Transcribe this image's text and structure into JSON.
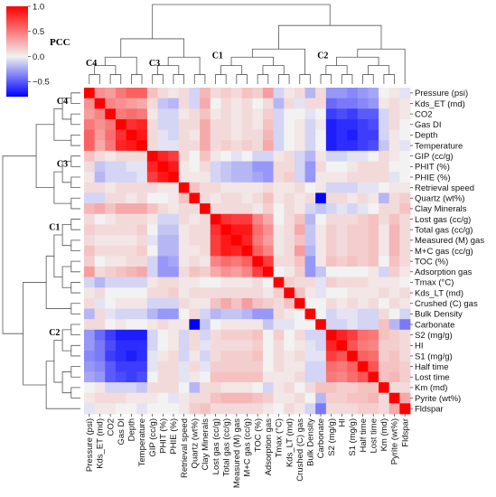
{
  "chart_data": {
    "type": "heatmap",
    "title": "",
    "colorbar": {
      "label": "PCC",
      "range": [
        -0.8,
        1.0
      ],
      "ticks": [
        1.0,
        0.5,
        0.0,
        -0.5
      ],
      "tick_labels": [
        "1.0",
        "0.5",
        "0.0",
        "−0.5"
      ],
      "colors": {
        "low": "#0000ff",
        "mid": "#f2f2f2",
        "high": "#ff0000"
      }
    },
    "variables": [
      "Pressure (psi)",
      "Kds_ET (md)",
      "CO2",
      "Gas DI",
      "Depth",
      "Temperature",
      "GIP (cc/g)",
      "PHIT (%)",
      "PHIE (%)",
      "Retrieval speed",
      "Quartz (wt%)",
      "Clay Minerals",
      "Lost gas (cc/g)",
      "Total gas (cc/g)",
      "Measured (M) gas",
      "M+C gas (cc/g)",
      "TOC (%)",
      "Adsorption gas",
      "Tmax (°C)",
      "Kds_LT (md)",
      "Crushed (C) gas",
      "Bulk Density",
      "Carbonate",
      "S2 (mg/g)",
      "HI",
      "S1 (mg/g)",
      "Half time",
      "Lost time",
      "Km (md)",
      "Pyrite (wt%)",
      "Fldspar"
    ],
    "x_tick_labels": [
      "Pressure (psi)",
      "Kds_ET (md)",
      "CO2",
      "Gas DI",
      "Depth",
      "Temperature",
      "GIP (cc/g)",
      "PHIT (%)",
      "PHIE (%)",
      "Retrieval speed",
      "Quartz (wt%)",
      "Clay Minerals",
      "Lost gas (cc/g)",
      "Total gas (cc/g)",
      "Measured (M) gas",
      "M+C gas (cc/g)",
      "TOC (%)",
      "Adsorption gas",
      "Tmax (°C)",
      "Kds_LT (md)",
      "Crushed (C) gas",
      "Bulk Density",
      "Carbonate",
      "S2 (mg/g)",
      "HI",
      "S1 (mg/g)",
      "Half time",
      "Lost time",
      "Km (md)",
      "Pyrite (wt%)",
      "Fldspar"
    ],
    "clusters": [
      {
        "name": "C4",
        "start": 0,
        "end": 5
      },
      {
        "name": "C3",
        "start": 6,
        "end": 11
      },
      {
        "name": "C1",
        "start": 12,
        "end": 21
      },
      {
        "name": "C2",
        "start": 22,
        "end": 30
      }
    ],
    "values": [
      [
        1.0,
        0.4,
        0.35,
        0.5,
        0.6,
        0.6,
        0.2,
        0.1,
        0.05,
        0.1,
        -0.1,
        0.25,
        0.1,
        0.15,
        0.1,
        0.2,
        0.15,
        0.35,
        -0.1,
        0.05,
        0.1,
        -0.2,
        0.1,
        -0.3,
        -0.3,
        -0.35,
        -0.3,
        -0.25,
        0.0,
        0.05,
        -0.05
      ],
      [
        0.4,
        1.0,
        0.45,
        0.4,
        0.35,
        0.3,
        0.1,
        -0.15,
        -0.2,
        0.1,
        -0.1,
        0.3,
        0.0,
        0.1,
        0.05,
        0.1,
        0.0,
        0.1,
        -0.2,
        0.1,
        -0.05,
        0.1,
        0.1,
        -0.45,
        -0.4,
        -0.4,
        -0.35,
        -0.3,
        0.05,
        0.1,
        0.05
      ],
      [
        0.35,
        0.45,
        1.0,
        0.5,
        0.55,
        0.5,
        0.05,
        -0.1,
        -0.1,
        0.05,
        0.1,
        0.2,
        0.05,
        0.1,
        0.05,
        0.1,
        0.05,
        0.15,
        -0.1,
        0.0,
        0.0,
        -0.05,
        0.0,
        -0.6,
        -0.55,
        -0.6,
        -0.5,
        -0.5,
        -0.1,
        0.1,
        0.05
      ],
      [
        0.5,
        0.4,
        0.5,
        1.0,
        0.8,
        0.85,
        0.1,
        -0.1,
        -0.1,
        0.1,
        0.1,
        0.3,
        0.1,
        0.1,
        0.05,
        0.1,
        0.05,
        0.2,
        -0.1,
        0.0,
        0.05,
        -0.1,
        0.05,
        -0.7,
        -0.65,
        -0.65,
        -0.6,
        -0.55,
        -0.1,
        0.1,
        0.0
      ],
      [
        0.6,
        0.35,
        0.55,
        0.8,
        1.0,
        0.9,
        0.1,
        -0.05,
        -0.1,
        0.1,
        0.05,
        0.3,
        0.1,
        0.1,
        0.05,
        0.1,
        0.1,
        0.25,
        -0.1,
        0.0,
        0.05,
        -0.1,
        0.0,
        -0.7,
        -0.65,
        -0.7,
        -0.6,
        -0.6,
        -0.1,
        0.05,
        0.0
      ],
      [
        0.6,
        0.3,
        0.5,
        0.85,
        0.9,
        1.0,
        0.1,
        -0.05,
        -0.05,
        0.1,
        0.1,
        0.3,
        0.1,
        0.15,
        0.1,
        0.15,
        0.1,
        0.3,
        -0.1,
        0.0,
        0.05,
        -0.1,
        0.0,
        -0.7,
        -0.65,
        -0.65,
        -0.6,
        -0.55,
        -0.15,
        0.05,
        -0.05
      ],
      [
        0.2,
        0.1,
        0.05,
        0.1,
        0.1,
        0.1,
        1.0,
        0.85,
        0.75,
        0.1,
        0.0,
        0.2,
        0.05,
        0.0,
        -0.05,
        0.0,
        -0.1,
        -0.1,
        0.05,
        0.1,
        -0.1,
        -0.2,
        0.05,
        -0.1,
        -0.1,
        -0.05,
        -0.05,
        0.0,
        0.1,
        0.05,
        0.0
      ],
      [
        0.1,
        -0.15,
        -0.1,
        -0.1,
        -0.05,
        -0.05,
        0.85,
        1.0,
        0.9,
        0.05,
        0.0,
        0.1,
        -0.1,
        -0.15,
        -0.2,
        -0.2,
        -0.3,
        -0.3,
        0.1,
        0.1,
        -0.1,
        -0.3,
        0.1,
        0.0,
        0.0,
        0.05,
        0.1,
        0.1,
        0.1,
        0.0,
        0.0
      ],
      [
        0.05,
        -0.2,
        -0.1,
        -0.1,
        -0.1,
        -0.05,
        0.75,
        0.9,
        1.0,
        0.05,
        0.05,
        0.05,
        -0.1,
        -0.15,
        -0.2,
        -0.2,
        -0.25,
        -0.3,
        0.1,
        0.15,
        -0.1,
        -0.3,
        0.05,
        0.05,
        0.05,
        0.1,
        0.1,
        0.1,
        0.1,
        -0.05,
        0.0
      ],
      [
        0.1,
        0.1,
        0.05,
        0.1,
        0.1,
        0.1,
        0.1,
        0.05,
        0.05,
        1.0,
        0.2,
        0.1,
        0.1,
        0.05,
        0.05,
        0.05,
        0.05,
        0.1,
        0.05,
        0.05,
        0.1,
        0.0,
        0.05,
        -0.1,
        -0.1,
        -0.1,
        -0.05,
        -0.05,
        0.0,
        0.05,
        0.05
      ],
      [
        -0.1,
        -0.1,
        0.1,
        0.1,
        0.05,
        0.1,
        0.0,
        0.0,
        0.05,
        0.2,
        1.0,
        0.1,
        0.05,
        0.1,
        0.1,
        0.05,
        0.1,
        0.2,
        0.05,
        0.1,
        0.05,
        0.1,
        -0.8,
        0.1,
        0.1,
        0.05,
        0.1,
        0.05,
        -0.2,
        0.1,
        0.15
      ],
      [
        0.25,
        0.3,
        0.2,
        0.3,
        0.3,
        0.3,
        0.2,
        0.1,
        0.05,
        0.1,
        0.1,
        1.0,
        0.1,
        0.1,
        0.1,
        0.1,
        0.05,
        0.15,
        0.0,
        0.1,
        0.05,
        -0.1,
        -0.15,
        -0.1,
        -0.05,
        -0.1,
        -0.05,
        0.0,
        0.1,
        0.1,
        0.2
      ],
      [
        0.1,
        0.0,
        0.05,
        0.1,
        0.1,
        0.1,
        0.05,
        -0.1,
        -0.1,
        0.1,
        0.05,
        0.1,
        1.0,
        0.8,
        0.75,
        0.75,
        0.45,
        0.3,
        0.0,
        0.1,
        0.2,
        -0.2,
        0.0,
        0.1,
        0.1,
        0.1,
        0.15,
        0.2,
        0.1,
        0.2,
        0.1
      ],
      [
        0.15,
        0.1,
        0.1,
        0.1,
        0.1,
        0.15,
        0.0,
        -0.15,
        -0.15,
        0.05,
        0.1,
        0.1,
        0.8,
        1.0,
        0.9,
        0.9,
        0.55,
        0.4,
        0.05,
        0.1,
        0.3,
        -0.15,
        0.05,
        0.15,
        0.1,
        0.15,
        0.15,
        0.2,
        0.05,
        0.25,
        0.1
      ],
      [
        0.1,
        0.05,
        0.05,
        0.05,
        0.05,
        0.1,
        -0.05,
        -0.2,
        -0.2,
        0.05,
        0.1,
        0.1,
        0.75,
        0.9,
        1.0,
        0.85,
        0.5,
        0.35,
        0.05,
        0.1,
        0.2,
        -0.15,
        0.05,
        0.15,
        0.1,
        0.15,
        0.15,
        0.2,
        0.05,
        0.25,
        0.1
      ],
      [
        0.2,
        0.1,
        0.1,
        0.1,
        0.1,
        0.15,
        0.0,
        -0.2,
        -0.2,
        0.05,
        0.05,
        0.1,
        0.75,
        0.9,
        0.85,
        1.0,
        0.6,
        0.45,
        0.05,
        0.1,
        0.35,
        -0.2,
        0.05,
        0.15,
        0.1,
        0.15,
        0.15,
        0.2,
        0.05,
        0.25,
        0.1
      ],
      [
        0.15,
        0.0,
        0.05,
        0.05,
        0.1,
        0.1,
        -0.1,
        -0.3,
        -0.25,
        0.05,
        0.1,
        0.05,
        0.45,
        0.55,
        0.5,
        0.6,
        1.0,
        0.75,
        0.1,
        0.1,
        0.2,
        -0.3,
        0.05,
        0.2,
        0.15,
        0.2,
        0.15,
        0.2,
        0.0,
        0.2,
        0.1
      ],
      [
        0.35,
        0.1,
        0.15,
        0.2,
        0.25,
        0.3,
        -0.1,
        -0.3,
        -0.3,
        0.1,
        0.2,
        0.15,
        0.3,
        0.4,
        0.35,
        0.45,
        0.75,
        1.0,
        0.0,
        0.05,
        0.15,
        -0.3,
        -0.15,
        0.0,
        0.0,
        0.0,
        0.0,
        0.05,
        -0.1,
        0.15,
        0.05
      ],
      [
        -0.1,
        -0.2,
        -0.1,
        -0.1,
        -0.1,
        -0.1,
        0.05,
        0.1,
        0.1,
        0.05,
        0.05,
        0.0,
        0.0,
        0.05,
        0.05,
        0.05,
        0.1,
        0.0,
        1.0,
        0.15,
        0.1,
        0.1,
        -0.05,
        0.15,
        0.1,
        0.1,
        0.1,
        0.05,
        0.05,
        0.05,
        0.0
      ],
      [
        0.05,
        0.1,
        0.0,
        0.0,
        0.0,
        0.0,
        0.1,
        0.1,
        0.15,
        0.05,
        0.1,
        0.1,
        0.1,
        0.1,
        0.1,
        0.1,
        0.1,
        0.05,
        0.15,
        1.0,
        0.2,
        0.05,
        -0.05,
        0.0,
        0.0,
        0.05,
        0.05,
        0.05,
        0.1,
        0.05,
        0.1
      ],
      [
        0.1,
        -0.05,
        0.0,
        0.05,
        0.05,
        0.05,
        -0.1,
        -0.1,
        -0.1,
        0.1,
        0.05,
        0.05,
        0.2,
        0.3,
        0.2,
        0.35,
        0.2,
        0.15,
        0.1,
        0.2,
        1.0,
        0.0,
        0.0,
        0.1,
        0.05,
        0.1,
        0.05,
        0.1,
        0.0,
        0.1,
        0.05
      ],
      [
        -0.2,
        0.1,
        -0.05,
        -0.1,
        -0.1,
        -0.1,
        -0.2,
        -0.3,
        -0.3,
        0.0,
        0.1,
        -0.1,
        -0.2,
        -0.15,
        -0.15,
        -0.2,
        -0.3,
        -0.3,
        0.1,
        0.05,
        0.0,
        1.0,
        0.0,
        -0.1,
        -0.05,
        -0.05,
        -0.1,
        -0.1,
        0.1,
        0.0,
        -0.1
      ],
      [
        0.1,
        0.1,
        0.0,
        0.05,
        0.0,
        0.0,
        0.05,
        0.1,
        0.05,
        0.05,
        -0.8,
        -0.15,
        0.0,
        0.05,
        0.05,
        0.05,
        0.05,
        -0.15,
        -0.05,
        -0.05,
        0.0,
        0.0,
        1.0,
        -0.1,
        -0.1,
        -0.05,
        -0.1,
        -0.1,
        0.2,
        -0.2,
        -0.4
      ],
      [
        -0.3,
        -0.45,
        -0.6,
        -0.7,
        -0.7,
        -0.7,
        -0.1,
        0.0,
        0.05,
        -0.1,
        0.1,
        -0.1,
        0.1,
        0.15,
        0.15,
        0.15,
        0.2,
        0.0,
        0.15,
        0.0,
        0.1,
        -0.1,
        -0.1,
        1.0,
        0.85,
        0.75,
        0.55,
        0.5,
        0.2,
        0.15,
        0.1
      ],
      [
        -0.3,
        -0.4,
        -0.55,
        -0.65,
        -0.65,
        -0.65,
        -0.1,
        0.0,
        0.05,
        -0.1,
        0.1,
        -0.05,
        0.1,
        0.1,
        0.1,
        0.1,
        0.15,
        0.0,
        0.1,
        0.0,
        0.05,
        -0.05,
        -0.1,
        0.85,
        1.0,
        0.65,
        0.5,
        0.45,
        0.15,
        0.15,
        0.1
      ],
      [
        -0.35,
        -0.4,
        -0.6,
        -0.65,
        -0.7,
        -0.65,
        -0.05,
        0.05,
        0.1,
        -0.1,
        0.05,
        -0.1,
        0.1,
        0.15,
        0.15,
        0.15,
        0.2,
        0.0,
        0.1,
        0.05,
        0.1,
        -0.05,
        -0.05,
        0.75,
        0.65,
        1.0,
        0.6,
        0.55,
        0.15,
        0.2,
        0.1
      ],
      [
        -0.3,
        -0.35,
        -0.5,
        -0.6,
        -0.6,
        -0.6,
        -0.05,
        0.1,
        0.1,
        -0.05,
        0.1,
        -0.05,
        0.15,
        0.15,
        0.15,
        0.15,
        0.15,
        0.0,
        0.1,
        0.05,
        0.05,
        -0.1,
        -0.1,
        0.55,
        0.5,
        0.6,
        1.0,
        0.65,
        0.2,
        0.2,
        0.15
      ],
      [
        -0.25,
        -0.3,
        -0.5,
        -0.55,
        -0.6,
        -0.55,
        0.0,
        0.1,
        0.1,
        -0.05,
        0.05,
        0.0,
        0.2,
        0.2,
        0.2,
        0.2,
        0.2,
        0.05,
        0.05,
        0.05,
        0.1,
        -0.1,
        -0.1,
        0.5,
        0.45,
        0.55,
        0.65,
        1.0,
        0.2,
        0.25,
        0.15
      ],
      [
        0.0,
        0.05,
        -0.1,
        -0.1,
        -0.1,
        -0.15,
        0.1,
        0.1,
        0.1,
        0.0,
        -0.2,
        0.1,
        0.1,
        0.05,
        0.05,
        0.05,
        0.0,
        -0.1,
        0.05,
        0.1,
        0.0,
        0.1,
        0.2,
        0.2,
        0.15,
        0.15,
        0.2,
        0.2,
        1.0,
        0.1,
        0.1
      ],
      [
        0.05,
        0.1,
        0.1,
        0.1,
        0.05,
        0.05,
        0.05,
        0.0,
        -0.05,
        0.05,
        0.1,
        0.1,
        0.2,
        0.25,
        0.25,
        0.25,
        0.2,
        0.15,
        0.05,
        0.05,
        0.1,
        0.0,
        -0.2,
        0.15,
        0.15,
        0.2,
        0.2,
        0.25,
        0.1,
        1.0,
        0.3
      ],
      [
        -0.05,
        0.05,
        0.05,
        0.0,
        0.0,
        -0.05,
        0.0,
        0.0,
        0.0,
        0.05,
        0.15,
        0.2,
        0.1,
        0.1,
        0.1,
        0.1,
        0.1,
        0.05,
        0.0,
        0.1,
        0.05,
        -0.1,
        -0.4,
        0.1,
        0.1,
        0.1,
        0.15,
        0.15,
        0.1,
        0.3,
        1.0
      ]
    ]
  }
}
